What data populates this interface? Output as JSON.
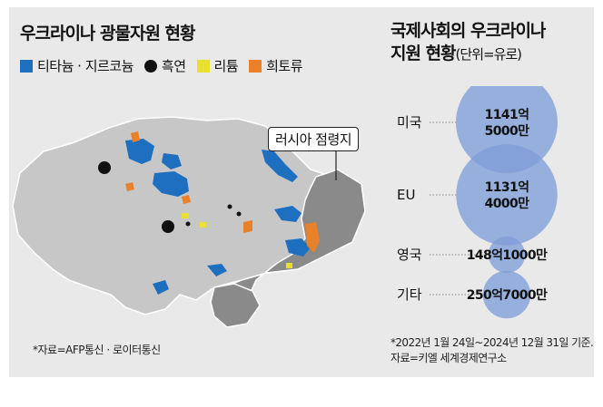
{
  "map": {
    "title": "우크라이나 광물자원 현황",
    "legend": [
      {
        "label": "티타늄 · 지르코늄",
        "color": "#1f6fc1",
        "shape": "square"
      },
      {
        "label": "흑연",
        "color": "#111111",
        "shape": "circle"
      },
      {
        "label": "리튬",
        "color": "#e9e032",
        "shape": "square"
      },
      {
        "label": "희토류",
        "color": "#e8812a",
        "shape": "square"
      }
    ],
    "occupied_label": "러시아 점령지",
    "source": "*자료=AFP통신 · 로이터통신",
    "colors": {
      "land": "#c7c7c7",
      "occupied": "#8a8a8a",
      "border": "#ffffff"
    }
  },
  "aid": {
    "title_line1": "국제사회의 우크라이나",
    "title_line2": "지원 현황",
    "title_unit": "(단위=유로)",
    "bubble_color": "#7f9fd8",
    "note_line1": "*2022년 1월 24일~2024년 12월 31일 기준.",
    "note_line2": "자료=키엘 세계경제연구소"
  },
  "chart_data": {
    "type": "bubble",
    "title": "국제사회의 우크라이나 지원 현황",
    "unit": "유로",
    "categories": [
      "미국",
      "EU",
      "영국",
      "기타"
    ],
    "values": [
      114150000000,
      113140000000,
      14810000000,
      25070000000
    ],
    "labels": [
      [
        "1141억",
        "5000만"
      ],
      [
        "1131억",
        "4000만"
      ],
      [
        "148억1000만"
      ],
      [
        "250억7000만"
      ]
    ]
  }
}
